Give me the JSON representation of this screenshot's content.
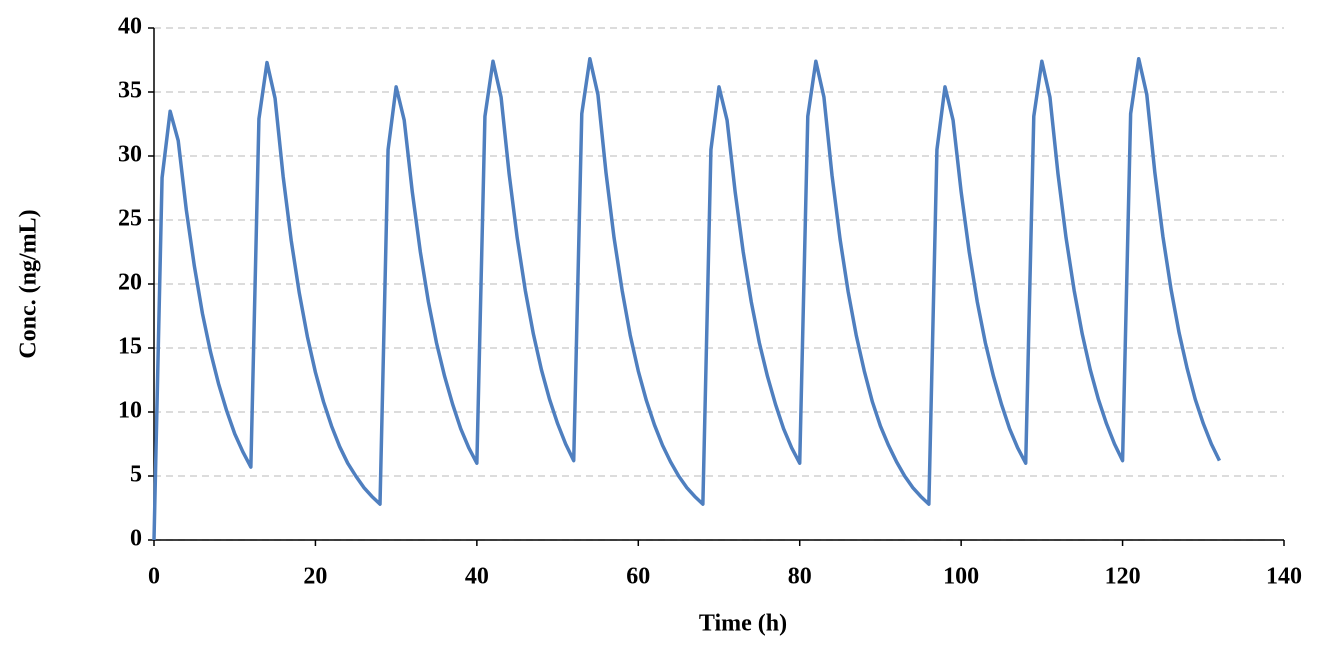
{
  "chart_data": {
    "type": "line",
    "x_label": "Time (h)",
    "y_label": "Conc. (ng/mL)",
    "x": [
      0,
      1,
      2,
      3,
      4,
      5,
      6,
      7,
      8,
      9,
      10,
      11,
      12,
      13,
      14,
      15,
      16,
      17,
      18,
      19,
      20,
      21,
      22,
      23,
      24,
      25,
      26,
      27,
      28,
      29,
      30,
      31,
      32,
      33,
      34,
      35,
      36,
      37,
      38,
      39,
      40,
      41,
      42,
      43,
      44,
      45,
      46,
      47,
      48,
      49,
      50,
      51,
      52,
      53,
      54,
      55,
      56,
      57,
      58,
      59,
      60,
      61,
      62,
      63,
      64,
      65,
      66,
      67,
      68,
      69,
      70,
      71,
      72,
      73,
      74,
      75,
      76,
      77,
      78,
      79,
      80,
      81,
      82,
      83,
      84,
      85,
      86,
      87,
      88,
      89,
      90,
      91,
      92,
      93,
      94,
      95,
      96,
      97,
      98,
      99,
      100,
      101,
      102,
      103,
      104,
      105,
      106,
      107,
      108,
      109,
      110,
      111,
      112,
      113,
      114,
      115,
      116,
      117,
      118,
      119,
      120,
      121,
      122,
      123,
      124,
      125,
      126,
      127,
      128,
      129,
      130,
      131,
      132
    ],
    "values": [
      0,
      28.3,
      33.5,
      31.2,
      25.8,
      21.4,
      17.7,
      14.7,
      12.2,
      10.1,
      8.3,
      6.9,
      5.7,
      32.9,
      37.3,
      34.5,
      28.4,
      23.4,
      19.3,
      15.9,
      13.1,
      10.8,
      8.9,
      7.3,
      6.0,
      5.0,
      4.1,
      3.4,
      2.8,
      30.5,
      35.4,
      32.8,
      27.2,
      22.5,
      18.6,
      15.4,
      12.8,
      10.6,
      8.7,
      7.2,
      6.0,
      33.1,
      37.4,
      34.6,
      28.6,
      23.6,
      19.5,
      16.1,
      13.3,
      11.0,
      9.1,
      7.5,
      6.2,
      33.3,
      37.6,
      34.8,
      28.7,
      23.6,
      19.5,
      16.0,
      13.2,
      10.9,
      9.0,
      7.4,
      6.1,
      5.0,
      4.1,
      3.4,
      2.8,
      30.5,
      35.4,
      32.8,
      27.2,
      22.5,
      18.6,
      15.4,
      12.8,
      10.6,
      8.7,
      7.2,
      6.0,
      33.1,
      37.4,
      34.6,
      28.5,
      23.5,
      19.4,
      16.0,
      13.2,
      10.8,
      8.9,
      7.4,
      6.1,
      5.0,
      4.1,
      3.4,
      2.8,
      30.5,
      35.4,
      32.8,
      27.2,
      22.5,
      18.6,
      15.4,
      12.8,
      10.6,
      8.7,
      7.2,
      6.0,
      33.1,
      37.4,
      34.6,
      28.6,
      23.6,
      19.5,
      16.1,
      13.3,
      11.0,
      9.1,
      7.5,
      6.2,
      33.3,
      37.6,
      34.8,
      28.7,
      23.7,
      19.6,
      16.2,
      13.4,
      11.0,
      9.1,
      7.5,
      6.2
    ],
    "color": "#4f7fbf",
    "xlim": [
      0,
      140
    ],
    "xticks": [
      0,
      20,
      40,
      60,
      80,
      100,
      120,
      140
    ],
    "ylim": [
      0,
      40
    ],
    "yticks": [
      0,
      5,
      10,
      15,
      20,
      25,
      30,
      35,
      40
    ],
    "grid": true
  }
}
